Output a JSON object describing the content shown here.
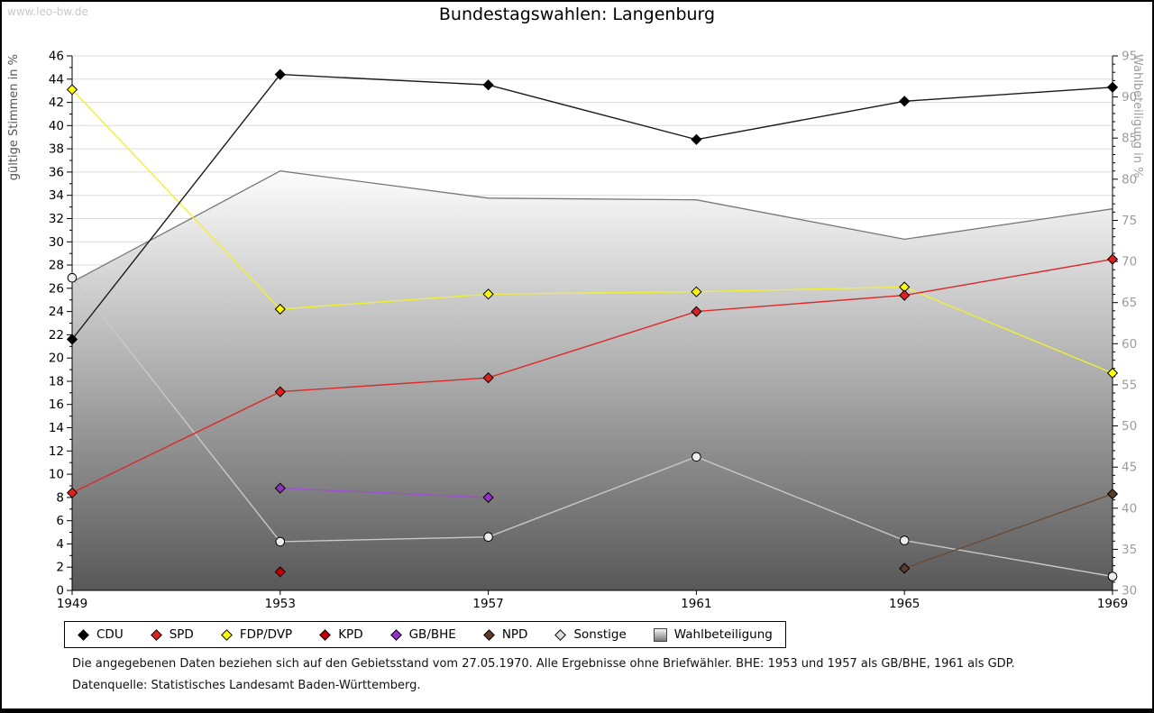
{
  "watermark": "www.leo-bw.de",
  "title": "Bundestagswahlen: Langenburg",
  "footer": {
    "line1": "Die angegebenen Daten beziehen sich auf den Gebietsstand vom 27.05.1970. Alle Ergebnisse ohne Briefwähler. BHE: 1953 und 1957 als GB/BHE, 1961 als GDP.",
    "line2": "Datenquelle: Statistisches Landesamt Baden-Württemberg."
  },
  "chart_data": {
    "type": "line",
    "title": "Bundestagswahlen: Langenburg",
    "x": [
      1949,
      1953,
      1957,
      1961,
      1965,
      1969
    ],
    "left_axis": {
      "label": "gültige Stimmen in %",
      "min": 0,
      "max": 46,
      "tick_step": 2,
      "minor_step": 1
    },
    "right_axis": {
      "label": "Wahlbeteiligung in %",
      "min": 30,
      "max": 95,
      "tick_step": 5,
      "minor_step": 1
    },
    "grid": true,
    "legend_position": "bottom",
    "series": [
      {
        "name": "CDU",
        "axis": "left",
        "marker": "diamond",
        "line_color": "#1a1a1a",
        "marker_color": "#000000",
        "values": [
          21.6,
          44.4,
          43.5,
          38.8,
          42.1,
          43.3
        ]
      },
      {
        "name": "SPD",
        "axis": "left",
        "marker": "diamond",
        "line_color": "#dc2a2a",
        "marker_color": "#e01f1f",
        "values": [
          8.4,
          17.1,
          18.3,
          24.0,
          25.4,
          28.5
        ]
      },
      {
        "name": "FDP/DVP",
        "axis": "left",
        "marker": "diamond",
        "line_color": "#f0f032",
        "marker_color": "#ffff00",
        "values": [
          43.1,
          24.2,
          25.5,
          25.7,
          26.1,
          18.7
        ]
      },
      {
        "name": "KPD",
        "axis": "left",
        "marker": "diamond",
        "line_color": "#c00000",
        "marker_color": "#c00000",
        "values": [
          null,
          1.6,
          null,
          null,
          null,
          null
        ]
      },
      {
        "name": "GB/BHE",
        "axis": "left",
        "marker": "diamond",
        "line_color": "#a04fd6",
        "marker_color": "#9330c8",
        "values": [
          null,
          8.8,
          8.0,
          null,
          null,
          null
        ]
      },
      {
        "name": "NPD",
        "axis": "left",
        "marker": "diamond",
        "line_color": "#6b4c35",
        "marker_color": "#5a3c28",
        "values": [
          null,
          null,
          null,
          null,
          1.9,
          8.3
        ]
      },
      {
        "name": "Sonstige",
        "axis": "left",
        "marker": "circle",
        "line_color": "#c9c9c9",
        "marker_color": "#ededed",
        "values": [
          26.9,
          4.2,
          4.6,
          11.5,
          4.3,
          1.2
        ]
      },
      {
        "name": "Wahlbeteiligung",
        "axis": "right",
        "type": "area",
        "line_color": "#787878",
        "fill_top": "#fdfdfd",
        "fill_bottom": "#585858",
        "values": [
          67.5,
          81.0,
          77.7,
          77.5,
          72.7,
          76.4
        ]
      }
    ]
  }
}
